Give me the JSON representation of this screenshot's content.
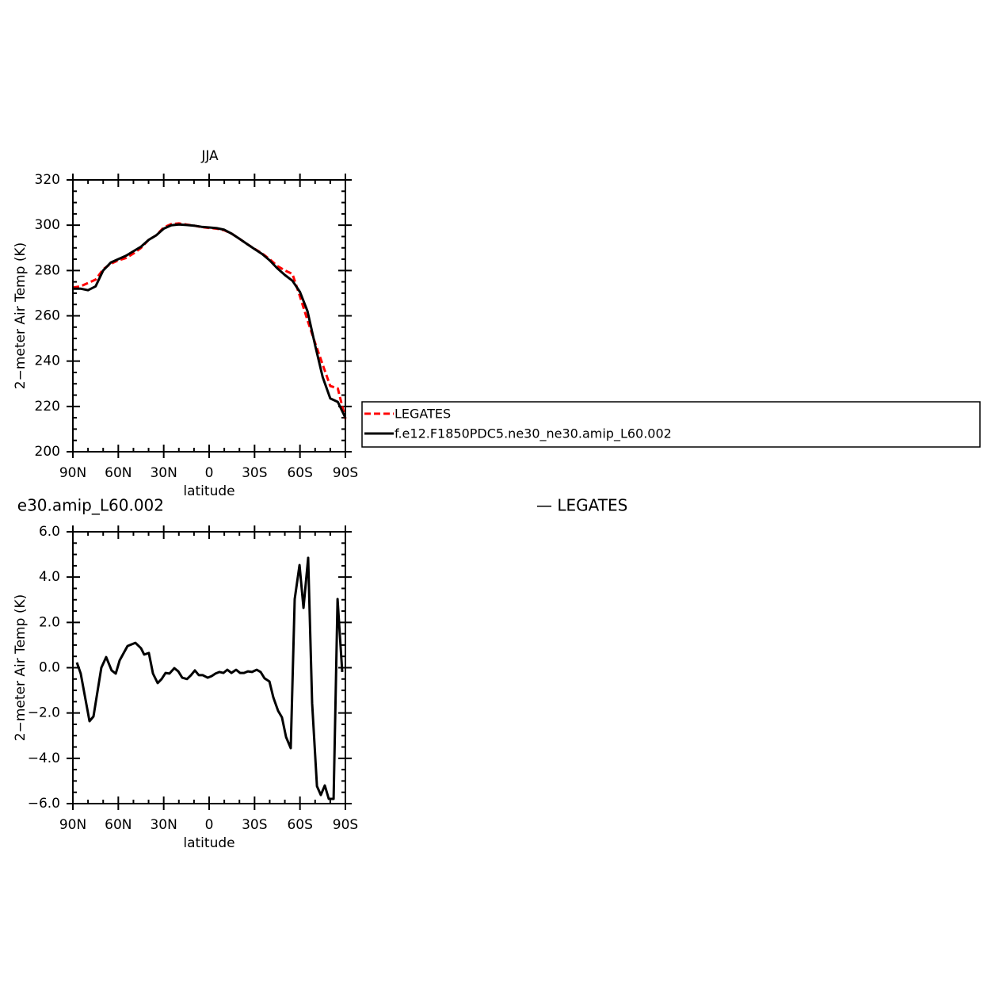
{
  "chart_data": [
    {
      "type": "line",
      "title": "JJA",
      "ylabel": "2−meter Air Temp (K)",
      "xlabel": "latitude",
      "x": [
        90,
        85,
        80,
        75,
        70,
        65,
        60,
        55,
        50,
        45,
        40,
        35,
        30,
        25,
        20,
        15,
        10,
        5,
        0,
        -5,
        -10,
        -15,
        -20,
        -25,
        -30,
        -35,
        -40,
        -45,
        -50,
        -55,
        -60,
        -65,
        -70,
        -75,
        -80,
        -85,
        -90
      ],
      "series": [
        {
          "name": "LEGATES",
          "color": "#ff0000",
          "dash": true,
          "values": [
            272.5,
            273,
            274.5,
            276,
            280.5,
            283,
            284.5,
            285.5,
            287.5,
            290,
            293.5,
            295.5,
            299,
            300.5,
            300.8,
            300.3,
            299.8,
            299.2,
            298.8,
            298.5,
            297.8,
            296.2,
            294,
            291.7,
            289.6,
            287.5,
            285,
            282,
            280,
            278.5,
            268.5,
            258,
            248,
            238.5,
            229,
            228,
            214.5
          ]
        },
        {
          "name": "f.e12.F1850PDC5.ne30_ne30.amip_L60.002",
          "color": "#000000",
          "dash": false,
          "values": [
            272,
            272,
            271.3,
            273,
            280,
            283.5,
            285,
            286.5,
            288.5,
            290.5,
            293.5,
            295.5,
            298.5,
            300,
            300.3,
            300.1,
            299.8,
            299.3,
            299,
            298.7,
            298,
            296.2,
            294,
            291.7,
            289.5,
            287.3,
            284.5,
            281,
            278,
            275.5,
            270.5,
            262,
            247,
            233,
            223.5,
            222,
            215
          ]
        }
      ],
      "xlim": [
        90,
        -90
      ],
      "xticks": [
        {
          "value": 90,
          "label": "90N"
        },
        {
          "value": 60,
          "label": "60N"
        },
        {
          "value": 30,
          "label": "30N"
        },
        0,
        {
          "value": -30,
          "label": "30S"
        },
        {
          "value": -60,
          "label": "60S"
        },
        {
          "value": -90,
          "label": "90S"
        }
      ],
      "ylim": [
        200,
        320
      ],
      "yticks": [
        200,
        220,
        240,
        260,
        280,
        300,
        320
      ],
      "legend": "right"
    },
    {
      "type": "line",
      "title": "e30.amip_L60.002",
      "subtitle": "— LEGATES",
      "ylabel": "2−meter Air Temp (K)",
      "xlabel": "latitude",
      "x": [
        87.4,
        84.8,
        79,
        76.4,
        71.2,
        68,
        64.4,
        61.7,
        59.1,
        53.9,
        48.7,
        45,
        42.9,
        39.8,
        37.1,
        34,
        31.4,
        28.8,
        26.2,
        23,
        20.4,
        17.8,
        14.6,
        12,
        9.4,
        6.8,
        4.2,
        1,
        -1.6,
        -4.2,
        -6.8,
        -9.4,
        -12,
        -14.7,
        -17.8,
        -20.4,
        -23,
        -25.6,
        -28.3,
        -31.4,
        -34,
        -36.6,
        -39.8,
        -42.4,
        -45.5,
        -48.1,
        -50.8,
        -53.9,
        -56.5,
        -59.7,
        -62.3,
        -65.4,
        -68,
        -71.2,
        -73.8,
        -76.4,
        -79,
        -82.2,
        -84.8,
        -87.9
      ],
      "series": [
        {
          "color": "#000000",
          "dash": false,
          "values": [
            0.23,
            -0.26,
            -2.36,
            -2.15,
            0,
            0.47,
            -0.12,
            -0.26,
            0.33,
            0.96,
            1.1,
            0.86,
            0.58,
            0.65,
            -0.26,
            -0.68,
            -0.5,
            -0.23,
            -0.26,
            -0.02,
            -0.16,
            -0.44,
            -0.5,
            -0.33,
            -0.12,
            -0.33,
            -0.33,
            -0.44,
            -0.37,
            -0.26,
            -0.19,
            -0.23,
            -0.09,
            -0.23,
            -0.09,
            -0.23,
            -0.23,
            -0.16,
            -0.19,
            -0.09,
            -0.19,
            -0.47,
            -0.61,
            -1.31,
            -1.9,
            -2.19,
            -3.06,
            -3.55,
            3.03,
            4.53,
            2.64,
            4.85,
            -1.56,
            -5.23,
            -5.62,
            -5.2,
            -5.79,
            -5.79,
            3.03,
            -0.19
          ]
        }
      ],
      "xlim": [
        90,
        -90
      ],
      "xticks": [
        {
          "value": 90,
          "label": "90N"
        },
        {
          "value": 60,
          "label": "60N"
        },
        {
          "value": 30,
          "label": "30N"
        },
        0,
        {
          "value": -30,
          "label": "30S"
        },
        {
          "value": -60,
          "label": "60S"
        },
        {
          "value": -90,
          "label": "90S"
        }
      ],
      "ylim": [
        -6,
        6
      ],
      "yticks": [
        {
          "value": -6,
          "label": "−6.0"
        },
        {
          "value": -4,
          "label": "−4.0"
        },
        {
          "value": -2,
          "label": "−2.0"
        },
        {
          "value": 0,
          "label": "0.0"
        },
        {
          "value": 2,
          "label": "2.0"
        },
        {
          "value": 4,
          "label": "4.0"
        },
        {
          "value": 6,
          "label": "6.0"
        }
      ]
    }
  ]
}
